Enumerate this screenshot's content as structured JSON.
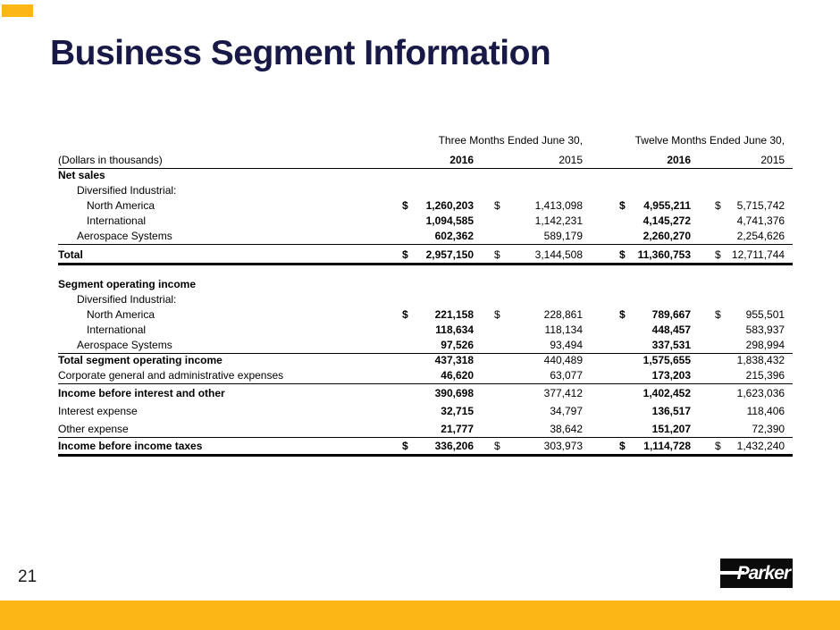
{
  "slide": {
    "title": "Business Segment Information",
    "page_number": "21",
    "logo_text": "Parker"
  },
  "colors": {
    "accent_gold": "#FDB714",
    "title_navy": "#191947",
    "logo_black": "#0B0B0B",
    "text_black": "#000000"
  },
  "table": {
    "units_label": "(Dollars in thousands)",
    "groups": [
      {
        "label": "Three Months Ended June 30,",
        "years": [
          "2016",
          "2015"
        ]
      },
      {
        "label": "Twelve Months Ended June 30,",
        "years": [
          "2016",
          "2015"
        ]
      }
    ],
    "rows": [
      {
        "label": "Net sales",
        "bold": true,
        "indent": 0,
        "values": null
      },
      {
        "label": "Diversified Industrial:",
        "indent": 1,
        "values": null
      },
      {
        "label": "North America",
        "indent": 2,
        "dollar": true,
        "values": [
          "1,260,203",
          "1,413,098",
          "4,955,211",
          "5,715,742"
        ]
      },
      {
        "label": "International",
        "indent": 2,
        "values": [
          "1,094,585",
          "1,142,231",
          "4,145,272",
          "4,741,376"
        ]
      },
      {
        "label": "Aerospace Systems",
        "indent": 1,
        "values": [
          "602,362",
          "589,179",
          "2,260,270",
          "2,254,626"
        ],
        "rule_below": "thin"
      },
      {
        "label": "Total",
        "bold": true,
        "dollar": true,
        "total": true,
        "values": [
          "2,957,150",
          "3,144,508",
          "11,360,753",
          "12,711,744"
        ],
        "rule_below": "thick"
      },
      {
        "spacer": true
      },
      {
        "label": "Segment operating income",
        "bold": true,
        "indent": 0,
        "values": null
      },
      {
        "label": "Diversified Industrial:",
        "indent": 1,
        "values": null
      },
      {
        "label": "North America",
        "indent": 2,
        "dollar": true,
        "values": [
          "221,158",
          "228,861",
          "789,667",
          "955,501"
        ]
      },
      {
        "label": "International",
        "indent": 2,
        "values": [
          "118,634",
          "118,134",
          "448,457",
          "583,937"
        ]
      },
      {
        "label": "Aerospace Systems",
        "indent": 1,
        "values": [
          "97,526",
          "93,494",
          "337,531",
          "298,994"
        ],
        "rule_below": "thin"
      },
      {
        "label": "Total segment operating income",
        "bold": true,
        "values": [
          "437,318",
          "440,489",
          "1,575,655",
          "1,838,432"
        ]
      },
      {
        "label": "Corporate general and administrative expenses",
        "values": [
          "46,620",
          "63,077",
          "173,203",
          "215,396"
        ],
        "rule_below": "thin"
      },
      {
        "label": "Income before interest and other",
        "bold": true,
        "tall": true,
        "values": [
          "390,698",
          "377,412",
          "1,402,452",
          "1,623,036"
        ]
      },
      {
        "label": "Interest expense",
        "tall": true,
        "values": [
          "32,715",
          "34,797",
          "136,517",
          "118,406"
        ]
      },
      {
        "label": "Other expense",
        "tall": true,
        "values": [
          "21,777",
          "38,642",
          "151,207",
          "72,390"
        ],
        "rule_below": "thin"
      },
      {
        "label": "Income before income taxes",
        "bold": true,
        "dollar": true,
        "tall": true,
        "values": [
          "336,206",
          "303,973",
          "1,114,728",
          "1,432,240"
        ],
        "rule_below": "thick"
      }
    ]
  }
}
